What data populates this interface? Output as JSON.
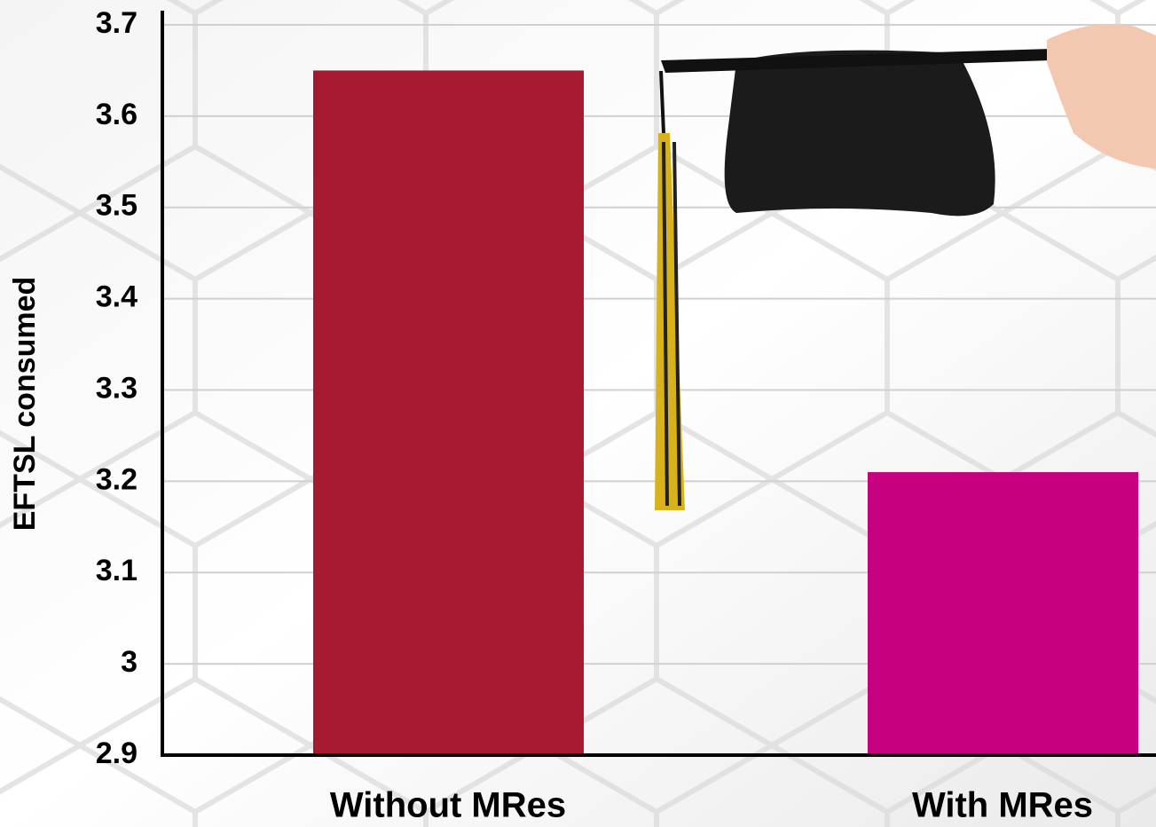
{
  "chart_data": {
    "type": "bar",
    "y_label": "EFTSL consumed",
    "categories": [
      "Without MRes",
      "With MRes"
    ],
    "values": [
      3.65,
      3.21
    ],
    "colors": [
      "#a6192e",
      "#c6007e"
    ],
    "ylim": [
      2.9,
      3.7
    ],
    "yticks": [
      2.9,
      3,
      3.1,
      3.2,
      3.3,
      3.4,
      3.5,
      3.6,
      3.7
    ],
    "grid": true
  }
}
